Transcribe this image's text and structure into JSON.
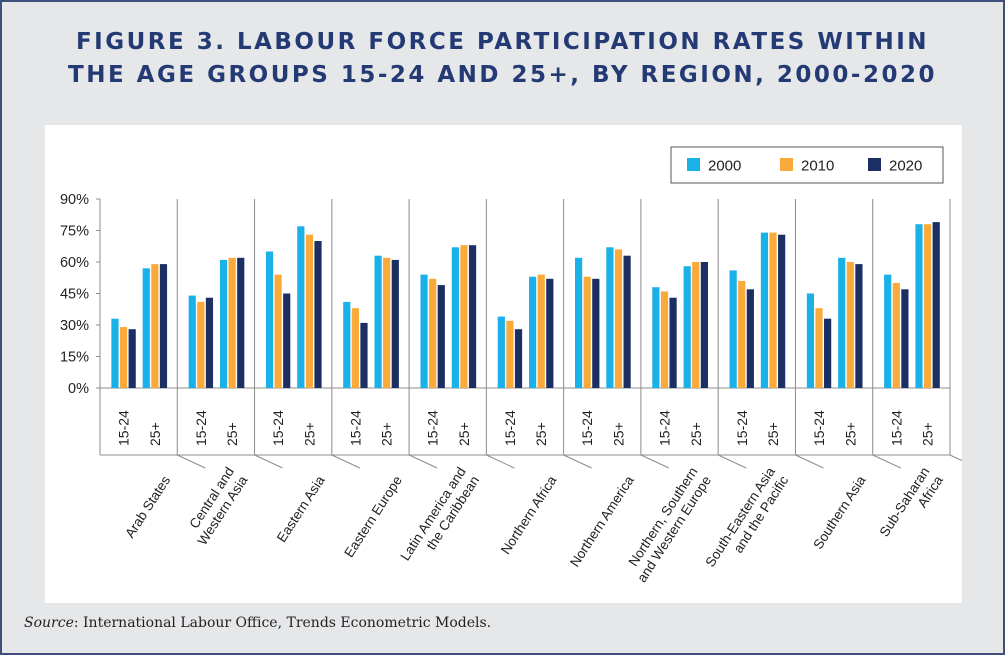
{
  "title_lines": [
    "FIGURE 3. LABOUR FORCE PARTICIPATION RATES WITHIN",
    "THE AGE GROUPS 15-24 AND 25+, BY REGION, 2000-2020"
  ],
  "source": {
    "label": "Source",
    "text": ": International Labour Office, Trends Econometric Models."
  },
  "colors": {
    "2000": "#1ab0e8",
    "2010": "#f9aa3a",
    "2020": "#1c2f63",
    "title": "#243a74",
    "frame": "#3e4f7c"
  },
  "chart_data": {
    "type": "bar",
    "title": "FIGURE 3. LABOUR FORCE PARTICIPATION RATES WITHIN THE AGE GROUPS 15-24 AND 25+, BY REGION, 2000-2020",
    "xlabel": "",
    "ylabel": "",
    "ylim": [
      0,
      90
    ],
    "yticks": [
      "0%",
      "15%",
      "30%",
      "45%",
      "60%",
      "75%",
      "90%"
    ],
    "grid": false,
    "legend_position": "top-right",
    "legend": [
      "2000",
      "2010",
      "2020"
    ],
    "age_groups": [
      "15-24",
      "25+"
    ],
    "regions": [
      {
        "label": [
          "Arab  States"
        ],
        "values": {
          "15-24": [
            33,
            29,
            28
          ],
          "25+": [
            57,
            59,
            59
          ]
        }
      },
      {
        "label": [
          "Central and",
          "Western Asia"
        ],
        "values": {
          "15-24": [
            44,
            41,
            43
          ],
          "25+": [
            61,
            62,
            62
          ]
        }
      },
      {
        "label": [
          "Eastern Asia"
        ],
        "values": {
          "15-24": [
            65,
            54,
            45
          ],
          "25+": [
            77,
            73,
            70
          ]
        }
      },
      {
        "label": [
          "Eastern Europe"
        ],
        "values": {
          "15-24": [
            41,
            38,
            31
          ],
          "25+": [
            63,
            62,
            61
          ]
        }
      },
      {
        "label": [
          "Latin America and",
          "the Caribbean"
        ],
        "values": {
          "15-24": [
            54,
            52,
            49
          ],
          "25+": [
            67,
            68,
            68
          ]
        }
      },
      {
        "label": [
          "Northern  Africa"
        ],
        "values": {
          "15-24": [
            34,
            32,
            28
          ],
          "25+": [
            53,
            54,
            52
          ]
        }
      },
      {
        "label": [
          "Northern  America"
        ],
        "values": {
          "15-24": [
            62,
            53,
            52
          ],
          "25+": [
            67,
            66,
            63
          ]
        }
      },
      {
        "label": [
          "Northern, Southern",
          "and Western Europe"
        ],
        "values": {
          "15-24": [
            48,
            46,
            43
          ],
          "25+": [
            58,
            60,
            60
          ]
        }
      },
      {
        "label": [
          "South-Eastern Asia",
          "and the Pacific"
        ],
        "values": {
          "15-24": [
            56,
            51,
            47
          ],
          "25+": [
            74,
            74,
            73
          ]
        }
      },
      {
        "label": [
          "Southern Asia"
        ],
        "values": {
          "15-24": [
            45,
            38,
            33
          ],
          "25+": [
            62,
            60,
            59
          ]
        }
      },
      {
        "label": [
          "Sub-Saharan",
          "Africa"
        ],
        "values": {
          "15-24": [
            54,
            50,
            47
          ],
          "25+": [
            78,
            78,
            79
          ]
        }
      }
    ]
  }
}
